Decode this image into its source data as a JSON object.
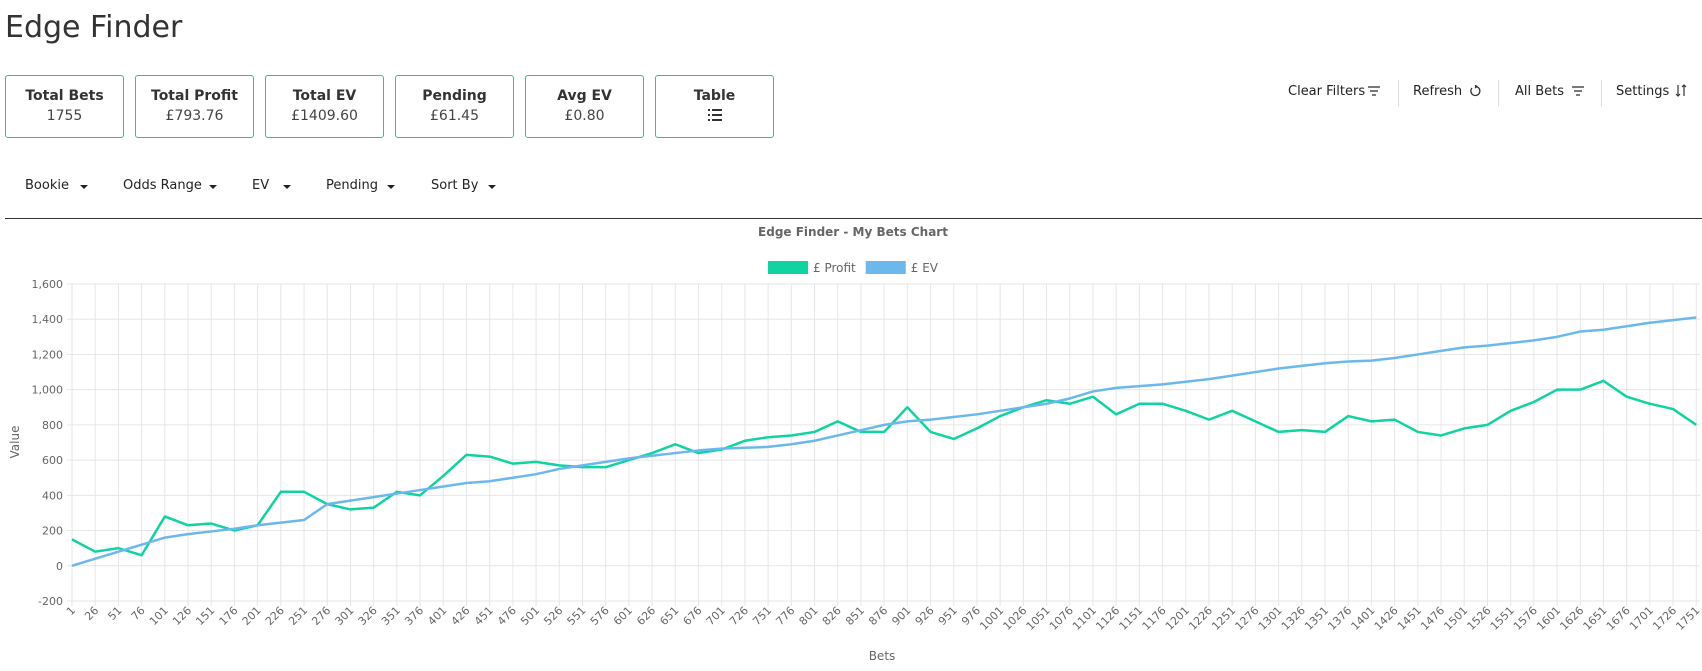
{
  "header": {
    "title": "Edge Finder"
  },
  "cards": [
    {
      "label": "Total Bets",
      "value": "1755"
    },
    {
      "label": "Total Profit",
      "value": "£793.76"
    },
    {
      "label": "Total EV",
      "value": "£1409.60"
    },
    {
      "label": "Pending",
      "value": "£61.45"
    },
    {
      "label": "Avg EV",
      "value": "£0.80"
    },
    {
      "label": "Table"
    }
  ],
  "actions": [
    "Clear Filters",
    "Refresh",
    "All Bets",
    "Settings"
  ],
  "filters": [
    "Bookie",
    "Odds Range",
    "EV",
    "Pending",
    "Sort By"
  ],
  "chart_data": {
    "type": "line",
    "title": "Edge Finder - My Bets Chart",
    "x_label": "Bets",
    "y_label": "Value",
    "x": [
      1,
      26,
      51,
      76,
      101,
      126,
      151,
      176,
      201,
      226,
      251,
      276,
      301,
      326,
      351,
      376,
      401,
      426,
      451,
      476,
      501,
      526,
      551,
      576,
      601,
      626,
      651,
      676,
      701,
      726,
      751,
      776,
      801,
      826,
      851,
      876,
      901,
      926,
      951,
      976,
      1001,
      1026,
      1051,
      1076,
      1101,
      1126,
      1151,
      1176,
      1201,
      1226,
      1251,
      1276,
      1301,
      1326,
      1351,
      1376,
      1401,
      1426,
      1451,
      1476,
      1501,
      1526,
      1551,
      1576,
      1601,
      1626,
      1651,
      1676,
      1701,
      1726,
      1751
    ],
    "series": [
      {
        "name": "£ Profit",
        "color": "#0fd3a0",
        "values": [
          150,
          80,
          100,
          60,
          280,
          230,
          240,
          200,
          230,
          420,
          420,
          350,
          320,
          330,
          420,
          400,
          510,
          630,
          620,
          580,
          590,
          570,
          560,
          560,
          600,
          640,
          690,
          640,
          660,
          710,
          730,
          740,
          760,
          820,
          760,
          760,
          900,
          760,
          720,
          780,
          850,
          900,
          940,
          920,
          960,
          860,
          920,
          920,
          880,
          830,
          880,
          820,
          760,
          770,
          760,
          850,
          820,
          830,
          760,
          740,
          780,
          800,
          880,
          930,
          1000,
          1000,
          1050,
          960,
          920,
          890,
          800
        ]
      },
      {
        "name": "£ EV",
        "color": "#6cb8ec",
        "values": [
          0,
          40,
          80,
          120,
          160,
          180,
          195,
          210,
          230,
          245,
          260,
          350,
          370,
          390,
          410,
          430,
          450,
          470,
          480,
          500,
          520,
          550,
          570,
          590,
          610,
          625,
          640,
          655,
          665,
          670,
          675,
          690,
          710,
          740,
          770,
          800,
          820,
          830,
          845,
          860,
          880,
          900,
          920,
          950,
          990,
          1010,
          1020,
          1030,
          1045,
          1060,
          1080,
          1100,
          1120,
          1135,
          1150,
          1160,
          1165,
          1180,
          1200,
          1220,
          1240,
          1250,
          1265,
          1280,
          1300,
          1330,
          1340,
          1360,
          1380,
          1395,
          1410
        ]
      }
    ],
    "xlim": [
      1,
      1755
    ],
    "xticks": [
      1,
      26,
      51,
      76,
      101,
      126,
      151,
      176,
      201,
      226,
      251,
      276,
      301,
      326,
      351,
      376,
      401,
      426,
      451,
      476,
      501,
      526,
      551,
      576,
      601,
      626,
      651,
      676,
      701,
      726,
      751,
      776,
      801,
      826,
      851,
      876,
      901,
      926,
      951,
      976,
      1001,
      1026,
      1051,
      1076,
      1101,
      1126,
      1151,
      1176,
      1201,
      1226,
      1251,
      1276,
      1301,
      1326,
      1351,
      1376,
      1401,
      1426,
      1451,
      1476,
      1501,
      1526,
      1551,
      1576,
      1601,
      1626,
      1651,
      1676,
      1701,
      1726,
      1751
    ],
    "ylim": [
      -200,
      1600
    ],
    "yticks": [
      -200,
      0,
      200,
      400,
      600,
      800,
      {
        "value": 1000,
        "label": "1,000"
      },
      {
        "value": 1200,
        "label": "1,200"
      },
      {
        "value": 1400,
        "label": "1,400"
      },
      {
        "value": 1600,
        "label": "1,600"
      }
    ],
    "grid": true
  }
}
